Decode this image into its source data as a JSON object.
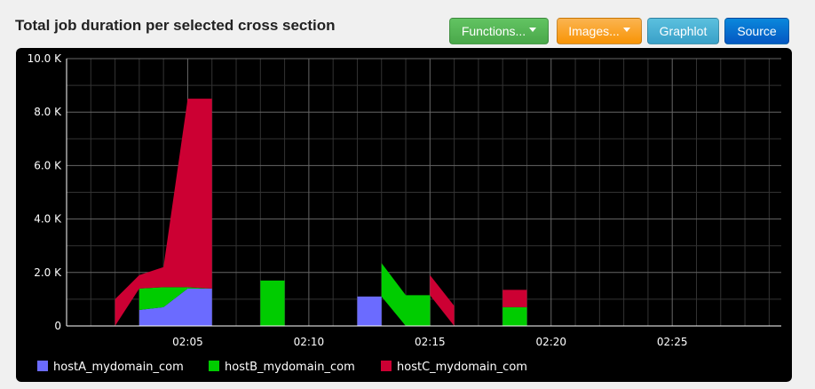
{
  "header": {
    "title": "Total job duration per selected cross section"
  },
  "toolbar": {
    "functions_label": "Functions...",
    "images_label": "Images...",
    "graphlot_label": "Graphlot",
    "source_label": "Source"
  },
  "chart_data": {
    "type": "area",
    "stacked": true,
    "grid": true,
    "legend_position": "bottom",
    "ylim": [
      0,
      10000
    ],
    "yticks": [
      "0",
      "2.0 K",
      "4.0 K",
      "6.0 K",
      "8.0 K",
      "10.0 K"
    ],
    "xticks": [
      "02:05",
      "02:10",
      "02:15",
      "02:20",
      "02:25"
    ],
    "series": [
      {
        "name": "hostA_mydomain_com",
        "color": "#6b6bff",
        "segments": [
          [
            [
              "02:03",
              600
            ],
            [
              "02:04",
              700
            ],
            [
              "02:05",
              1400
            ],
            [
              "02:06",
              1400
            ]
          ],
          [
            [
              "02:12",
              1100
            ],
            [
              "02:13",
              1100
            ]
          ]
        ]
      },
      {
        "name": "hostB_mydomain_com",
        "color": "#00cc00",
        "segments": [
          [
            [
              "02:03",
              800
            ],
            [
              "02:04",
              750
            ],
            [
              "02:05",
              50
            ],
            [
              "02:06",
              0
            ]
          ],
          [
            [
              "02:08",
              1700
            ],
            [
              "02:09",
              1700
            ]
          ],
          [
            [
              "02:13",
              1250
            ],
            [
              "02:14",
              1150
            ],
            [
              "02:15",
              1150
            ]
          ],
          [
            [
              "02:18",
              700
            ],
            [
              "02:19",
              700
            ]
          ]
        ]
      },
      {
        "name": "hostC_mydomain_com",
        "color": "#cc0033",
        "segments": [
          [
            [
              "02:02",
              1000
            ],
            [
              "02:03",
              500
            ],
            [
              "02:04",
              750
            ],
            [
              "02:05",
              7050
            ],
            [
              "02:06",
              7100
            ]
          ],
          [
            [
              "02:15",
              750
            ],
            [
              "02:16",
              750
            ]
          ],
          [
            [
              "02:18",
              650
            ],
            [
              "02:19",
              650
            ]
          ]
        ]
      }
    ]
  }
}
